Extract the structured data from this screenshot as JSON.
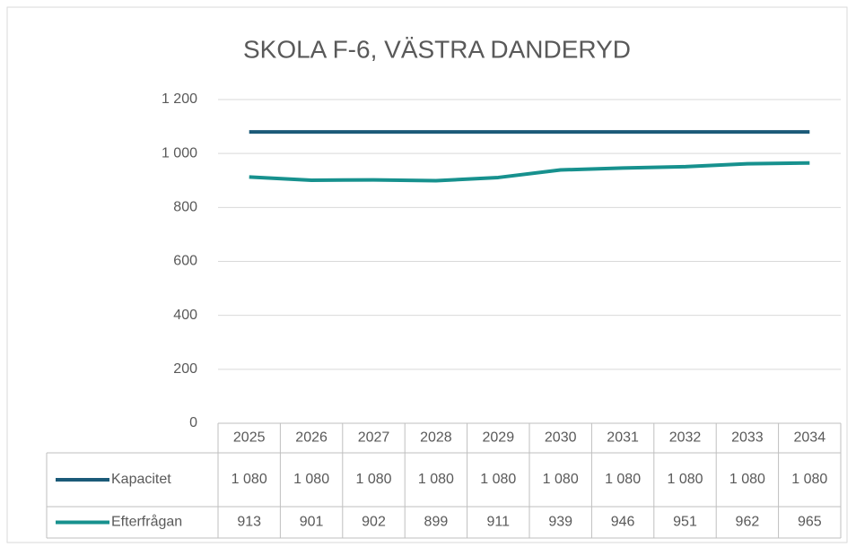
{
  "chart_data": {
    "type": "line",
    "title": "SKOLA F-6, VÄSTRA DANDERYD",
    "categories": [
      "2025",
      "2026",
      "2027",
      "2028",
      "2029",
      "2030",
      "2031",
      "2032",
      "2033",
      "2034"
    ],
    "series": [
      {
        "name": "Kapacitet",
        "color": "#1b5a78",
        "values": [
          1080,
          1080,
          1080,
          1080,
          1080,
          1080,
          1080,
          1080,
          1080,
          1080
        ],
        "value_labels": [
          "1 080",
          "1 080",
          "1 080",
          "1 080",
          "1 080",
          "1 080",
          "1 080",
          "1 080",
          "1 080",
          "1 080"
        ]
      },
      {
        "name": "Efterfrågan",
        "color": "#17918e",
        "values": [
          913,
          901,
          902,
          899,
          911,
          939,
          946,
          951,
          962,
          965
        ]
      }
    ],
    "ylim": [
      0,
      1200
    ],
    "yticks": [
      0,
      200,
      400,
      600,
      800,
      {
        "value": 1000,
        "label": "1 000"
      },
      {
        "value": 1200,
        "label": "1 200"
      }
    ],
    "grid": true
  }
}
